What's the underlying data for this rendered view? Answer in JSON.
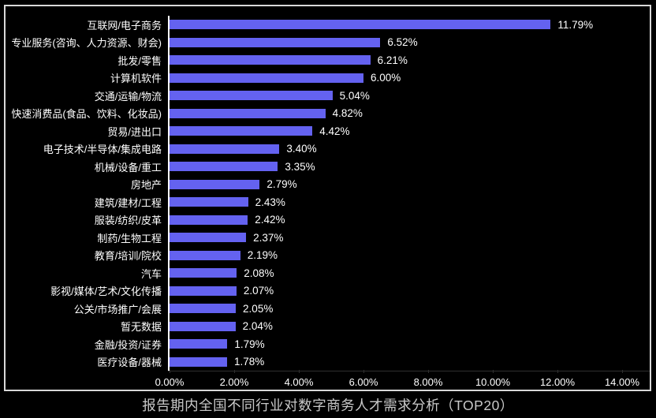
{
  "title": "报告期内全国不同行业对数字商务人才需求分析（TOP20）",
  "colors": {
    "background": "#000000",
    "bar": "#6462f0",
    "frame_border": "#d8d8d8",
    "category_axis_line": "#ffffff",
    "value_axis_line": "#2f2f2f",
    "text": "#ffffff",
    "title_text": "#c9c9c9"
  },
  "chart_data": {
    "type": "bar",
    "orientation": "horizontal",
    "title": "报告期内全国不同行业对数字商务人才需求分析（TOP20）",
    "xlabel": "",
    "ylabel": "",
    "xlim": [
      0,
      14
    ],
    "grid": false,
    "legend": "none",
    "categories": [
      "互联网/电子商务",
      "专业服务(咨询、人力资源、财会)",
      "批发/零售",
      "计算机软件",
      "交通/运输/物流",
      "快速消费品(食品、饮料、化妆品)",
      "贸易/进出口",
      "电子技术/半导体/集成电路",
      "机械/设备/重工",
      "房地产",
      "建筑/建材/工程",
      "服装/纺织/皮革",
      "制药/生物工程",
      "教育/培训/院校",
      "汽车",
      "影视/媒体/艺术/文化传播",
      "公关/市场推广/会展",
      "暂无数据",
      "金融/投资/证券",
      "医疗设备/器械"
    ],
    "values": [
      11.79,
      6.52,
      6.21,
      6.0,
      5.04,
      4.82,
      4.42,
      3.4,
      3.35,
      2.79,
      2.43,
      2.42,
      2.37,
      2.19,
      2.08,
      2.07,
      2.05,
      2.04,
      1.79,
      1.78
    ],
    "value_labels": [
      "11.79%",
      "6.52%",
      "6.21%",
      "6.00%",
      "5.04%",
      "4.82%",
      "4.42%",
      "3.40%",
      "3.35%",
      "2.79%",
      "2.43%",
      "2.42%",
      "2.37%",
      "2.19%",
      "2.08%",
      "2.07%",
      "2.05%",
      "2.04%",
      "1.79%",
      "1.78%"
    ],
    "x_ticks": [
      "0.00%",
      "2.00%",
      "4.00%",
      "6.00%",
      "8.00%",
      "10.00%",
      "12.00%",
      "14.00%"
    ],
    "x_tick_values": [
      0,
      2,
      4,
      6,
      8,
      10,
      12,
      14
    ]
  }
}
